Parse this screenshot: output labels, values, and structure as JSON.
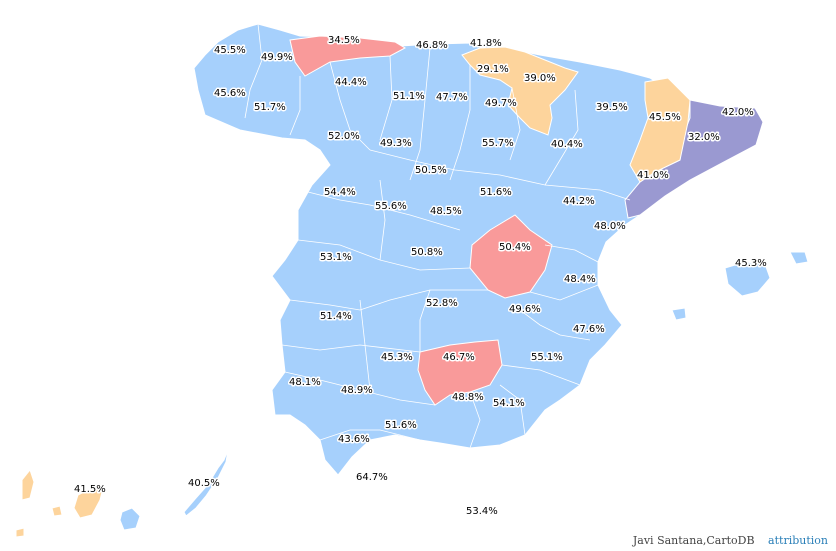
{
  "colors": {
    "blue": "#a6d0fc",
    "red": "#f99a9a",
    "orange": "#fdd49c",
    "purple": "#9a99d1",
    "border": "#ffffff"
  },
  "labels": [
    {
      "id": "a-coruna",
      "value": "45.5%"
    },
    {
      "id": "lugo",
      "value": "49.9%"
    },
    {
      "id": "asturias",
      "value": "34.5%"
    },
    {
      "id": "cantabria",
      "value": "46.8%"
    },
    {
      "id": "bizkaia",
      "value": "41.8%"
    },
    {
      "id": "gipuzkoa",
      "value": "29.1%"
    },
    {
      "id": "navarra",
      "value": "39.0%"
    },
    {
      "id": "leon",
      "value": "44.4%"
    },
    {
      "id": "pontevedra",
      "value": "45.6%"
    },
    {
      "id": "ourense",
      "value": "51.7%"
    },
    {
      "id": "palencia",
      "value": "51.1%"
    },
    {
      "id": "burgos",
      "value": "47.7%"
    },
    {
      "id": "la-rioja",
      "value": "49.7%"
    },
    {
      "id": "huesca",
      "value": "39.5%"
    },
    {
      "id": "lleida",
      "value": "45.5%"
    },
    {
      "id": "girona",
      "value": "42.0%"
    },
    {
      "id": "zamora",
      "value": "52.0%"
    },
    {
      "id": "valladolid",
      "value": "49.3%"
    },
    {
      "id": "soria",
      "value": "55.7%"
    },
    {
      "id": "zaragoza",
      "value": "40.4%"
    },
    {
      "id": "barcelona",
      "value": "32.0%"
    },
    {
      "id": "segovia",
      "value": "50.5%"
    },
    {
      "id": "tarragona",
      "value": "41.0%"
    },
    {
      "id": "salamanca",
      "value": "54.4%"
    },
    {
      "id": "avila",
      "value": "55.6%"
    },
    {
      "id": "guadalajara",
      "value": "51.6%"
    },
    {
      "id": "madrid",
      "value": "48.5%"
    },
    {
      "id": "teruel",
      "value": "44.2%"
    },
    {
      "id": "castellon",
      "value": "48.0%"
    },
    {
      "id": "caceres",
      "value": "53.1%"
    },
    {
      "id": "toledo",
      "value": "50.8%"
    },
    {
      "id": "cuenca",
      "value": "50.4%"
    },
    {
      "id": "baleares",
      "value": "45.3%"
    },
    {
      "id": "valencia",
      "value": "48.4%"
    },
    {
      "id": "ciudad-real",
      "value": "52.8%"
    },
    {
      "id": "albacete",
      "value": "49.6%"
    },
    {
      "id": "badajoz",
      "value": "51.4%"
    },
    {
      "id": "alicante",
      "value": "47.6%"
    },
    {
      "id": "cordoba",
      "value": "45.3%"
    },
    {
      "id": "jaen",
      "value": "46.7%"
    },
    {
      "id": "murcia",
      "value": "55.1%"
    },
    {
      "id": "huelva",
      "value": "48.1%"
    },
    {
      "id": "sevilla",
      "value": "48.9%"
    },
    {
      "id": "granada",
      "value": "48.8%"
    },
    {
      "id": "almeria",
      "value": "54.1%"
    },
    {
      "id": "malaga",
      "value": "51.6%"
    },
    {
      "id": "cadiz",
      "value": "43.6%"
    },
    {
      "id": "ceuta",
      "value": "64.7%"
    },
    {
      "id": "santa-cruz-tenerife",
      "value": "41.5%"
    },
    {
      "id": "las-palmas",
      "value": "40.5%"
    },
    {
      "id": "melilla",
      "value": "53.4%"
    }
  ],
  "attribution": {
    "credit": "Javi Santana,CartoDB",
    "link_label": "attribution"
  }
}
